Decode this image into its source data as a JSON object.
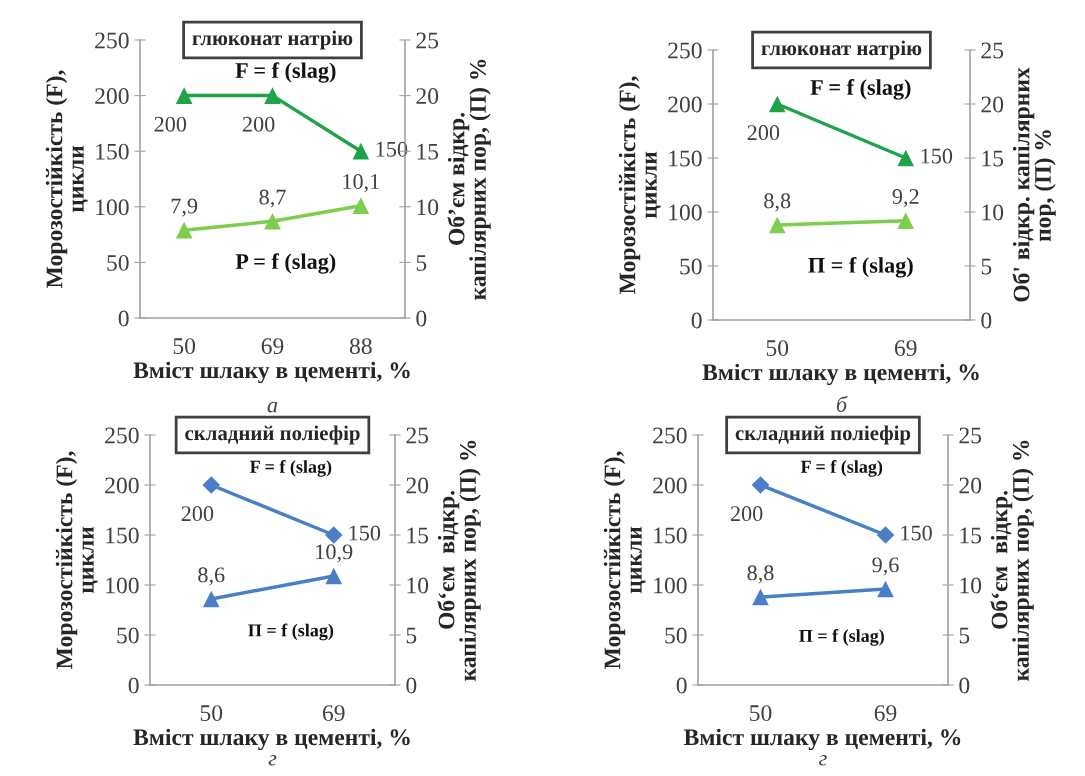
{
  "chart_data": [
    {
      "type": "line",
      "title": "глюконат натрію",
      "xlabel": "Вміст шлаку в цементі, %",
      "ylabel": "Морозостійкість (F),\nцикли",
      "y2label": "Об’єм відкр.\nкапілярних пор, (П) %",
      "categories": [
        "50",
        "69",
        "88"
      ],
      "ylim": [
        0,
        250
      ],
      "yticks": [
        0,
        50,
        100,
        150,
        200,
        250
      ],
      "y2lim": [
        0,
        25
      ],
      "y2ticks": [
        0,
        5,
        10,
        15,
        20,
        25
      ],
      "legend": false,
      "annotations": [
        "а"
      ],
      "series": [
        {
          "name": "F = f (slag)",
          "color": "#1fa34a",
          "marker": "triangle",
          "values": [
            200,
            200,
            150
          ],
          "value_labels": [
            "200",
            "200",
            "150"
          ]
        },
        {
          "name": "P = f (slag)",
          "color": "#7fcd4f",
          "marker": "triangle",
          "axis": "y2",
          "values": [
            7.9,
            8.7,
            10.1
          ],
          "value_labels": [
            "7,9",
            "8,7",
            "10,1"
          ]
        }
      ]
    },
    {
      "type": "line",
      "title": "глюконат натрію",
      "xlabel": "Вміст шлаку в цементі, %",
      "ylabel": "Морозостійкість (F),\nцикли",
      "y2label": "Об' відкр. капілярних\nпор, (П) %",
      "categories": [
        "50",
        "69"
      ],
      "ylim": [
        0,
        250
      ],
      "yticks": [
        0,
        50,
        100,
        150,
        200,
        250
      ],
      "y2lim": [
        0,
        25
      ],
      "y2ticks": [
        0,
        5,
        10,
        15,
        20,
        25
      ],
      "legend": false,
      "annotations": [
        "б"
      ],
      "series": [
        {
          "name": "F = f (slag)",
          "color": "#1fa34a",
          "marker": "triangle",
          "values": [
            200,
            150
          ],
          "value_labels": [
            "200",
            "150"
          ]
        },
        {
          "name": "П = f (slag)",
          "color": "#7fcd4f",
          "marker": "triangle",
          "axis": "y2",
          "values": [
            8.8,
            9.2
          ],
          "value_labels": [
            "8,8",
            "9,2"
          ]
        }
      ]
    },
    {
      "type": "line",
      "title": "складний поліефір",
      "xlabel": "Вміст шлаку в цементі, %",
      "ylabel": "Морозостійкість (F),\nцикли",
      "y2label": "Об‘єм  відкр.\nкапілярних пор, (П) %",
      "categories": [
        "50",
        "69"
      ],
      "ylim": [
        0,
        250
      ],
      "yticks": [
        0,
        50,
        100,
        150,
        200,
        250
      ],
      "y2lim": [
        0,
        25
      ],
      "y2ticks": [
        0,
        5,
        10,
        15,
        20,
        25
      ],
      "legend": false,
      "annotations": [
        "г"
      ],
      "series": [
        {
          "name": "F = f (slag)",
          "color": "#4a7fc8",
          "marker": "diamond",
          "values": [
            200,
            150
          ],
          "value_labels": [
            "200",
            "150"
          ]
        },
        {
          "name": "П = f (slag)",
          "color": "#4a7fc8",
          "marker": "triangle",
          "axis": "y2",
          "values": [
            8.6,
            10.9
          ],
          "value_labels": [
            "8,6",
            "10,9"
          ]
        }
      ]
    },
    {
      "type": "line",
      "title": "складний поліефір",
      "xlabel": "Вміст шлаку в цементі, %",
      "ylabel": "Морозостійкість (F),\nцикли",
      "y2label": "Об‘єм  відкр.\nкапілярних пор, (П) %",
      "categories": [
        "50",
        "69"
      ],
      "ylim": [
        0,
        250
      ],
      "yticks": [
        0,
        50,
        100,
        150,
        200,
        250
      ],
      "y2lim": [
        0,
        25
      ],
      "y2ticks": [
        0,
        5,
        10,
        15,
        20,
        25
      ],
      "legend": false,
      "annotations": [
        "г"
      ],
      "series": [
        {
          "name": "F = f (slag)",
          "color": "#4a7fc8",
          "marker": "diamond",
          "values": [
            200,
            150
          ],
          "value_labels": [
            "200",
            "150"
          ]
        },
        {
          "name": "П = f (slag)",
          "color": "#4a7fc8",
          "marker": "triangle",
          "axis": "y2",
          "values": [
            8.8,
            9.6
          ],
          "value_labels": [
            "8,8",
            "9,6"
          ]
        }
      ]
    }
  ]
}
